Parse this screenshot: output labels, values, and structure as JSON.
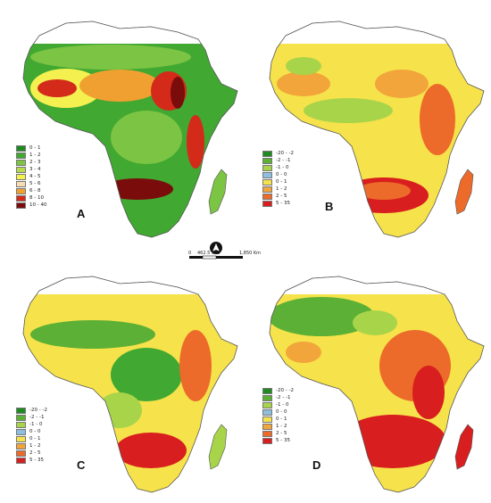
{
  "panels": [
    {
      "label": "A",
      "legend": [
        {
          "label": "0 - 1",
          "color": "#1f8a1f"
        },
        {
          "label": "1 - 2",
          "color": "#41a832"
        },
        {
          "label": "2 - 3",
          "color": "#7cc443"
        },
        {
          "label": "3 - 4",
          "color": "#b5dc4c"
        },
        {
          "label": "4 - 5",
          "color": "#f4f050"
        },
        {
          "label": "5 - 6",
          "color": "#f6dcb0"
        },
        {
          "label": "6 - 8",
          "color": "#f0a030"
        },
        {
          "label": "8 - 10",
          "color": "#d42a1a"
        },
        {
          "label": "10 - 40",
          "color": "#7a0c0c"
        }
      ]
    },
    {
      "label": "B",
      "legend": [
        {
          "label": "-20 - -2",
          "color": "#1f8a1f"
        },
        {
          "label": "-2 - -1",
          "color": "#5cb035"
        },
        {
          "label": "-1 - 0",
          "color": "#a8d44a"
        },
        {
          "label": "0 - 0",
          "color": "#8fbfe0"
        },
        {
          "label": "0 - 1",
          "color": "#f6e24a"
        },
        {
          "label": "1 - 2",
          "color": "#f2a53a"
        },
        {
          "label": "2 - 5",
          "color": "#ec6a2a"
        },
        {
          "label": "5 - 35",
          "color": "#d81e1e"
        }
      ]
    },
    {
      "label": "C",
      "legend": [
        {
          "label": "-20 - -2",
          "color": "#1f8a1f"
        },
        {
          "label": "-2 - -1",
          "color": "#5cb035"
        },
        {
          "label": "-1 - 0",
          "color": "#a8d44a"
        },
        {
          "label": "0 - 0",
          "color": "#8fbfe0"
        },
        {
          "label": "0 - 1",
          "color": "#f6e24a"
        },
        {
          "label": "1 - 2",
          "color": "#f2a53a"
        },
        {
          "label": "2 - 5",
          "color": "#ec6a2a"
        },
        {
          "label": "5 - 35",
          "color": "#d81e1e"
        }
      ]
    },
    {
      "label": "D",
      "legend": [
        {
          "label": "-20 - -2",
          "color": "#1f8a1f"
        },
        {
          "label": "-2 - -1",
          "color": "#5cb035"
        },
        {
          "label": "-1 - 0",
          "color": "#a8d44a"
        },
        {
          "label": "0 - 0",
          "color": "#8fbfe0"
        },
        {
          "label": "0 - 1",
          "color": "#f6e24a"
        },
        {
          "label": "1 - 2",
          "color": "#f2a53a"
        },
        {
          "label": "2 - 5",
          "color": "#ec6a2a"
        },
        {
          "label": "5 - 35",
          "color": "#d81e1e"
        }
      ]
    }
  ],
  "scale": {
    "ticks": [
      "0",
      "462.5",
      "925",
      "1,850 Km"
    ]
  },
  "icons": {
    "north_arrow": "north-arrow-icon"
  }
}
